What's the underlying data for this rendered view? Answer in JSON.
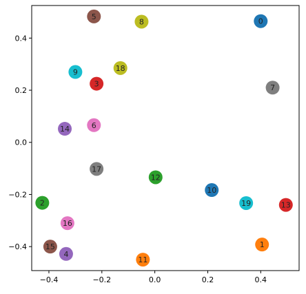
{
  "chart_data": {
    "type": "scatter",
    "xlim": [
      -0.465,
      0.545
    ],
    "ylim": [
      -0.492,
      0.525
    ],
    "grid": false,
    "x_ticks": [
      {
        "value": -0.4,
        "label": "−0.4"
      },
      {
        "value": -0.2,
        "label": "−0.2"
      },
      {
        "value": 0.0,
        "label": "0.0"
      },
      {
        "value": 0.2,
        "label": "0.2"
      },
      {
        "value": 0.4,
        "label": "0.4"
      }
    ],
    "y_ticks": [
      {
        "value": 0.4,
        "label": "0.4"
      },
      {
        "value": 0.2,
        "label": "0.2"
      },
      {
        "value": 0.0,
        "label": "0.0"
      },
      {
        "value": -0.2,
        "label": "−0.2"
      },
      {
        "value": -0.4,
        "label": "−0.4"
      }
    ],
    "points": [
      {
        "label": "0",
        "x": 0.4,
        "y": 0.465,
        "color": "#1f77b4"
      },
      {
        "label": "1",
        "x": 0.405,
        "y": -0.392,
        "color": "#ff7f0e"
      },
      {
        "label": "2",
        "x": -0.425,
        "y": -0.232,
        "color": "#2ca02c"
      },
      {
        "label": "3",
        "x": -0.22,
        "y": 0.225,
        "color": "#d62728"
      },
      {
        "label": "4",
        "x": -0.335,
        "y": -0.428,
        "color": "#9467bd"
      },
      {
        "label": "5",
        "x": -0.23,
        "y": 0.483,
        "color": "#8c564b"
      },
      {
        "label": "6",
        "x": -0.23,
        "y": 0.066,
        "color": "#e377c2"
      },
      {
        "label": "7",
        "x": 0.445,
        "y": 0.21,
        "color": "#7f7f7f"
      },
      {
        "label": "8",
        "x": -0.05,
        "y": 0.463,
        "color": "#bcbd22"
      },
      {
        "label": "9",
        "x": -0.3,
        "y": 0.27,
        "color": "#17becf"
      },
      {
        "label": "10",
        "x": 0.215,
        "y": -0.183,
        "color": "#1f77b4"
      },
      {
        "label": "11",
        "x": -0.045,
        "y": -0.45,
        "color": "#ff7f0e"
      },
      {
        "label": "12",
        "x": 0.003,
        "y": -0.134,
        "color": "#2ca02c"
      },
      {
        "label": "13",
        "x": 0.495,
        "y": -0.24,
        "color": "#d62728"
      },
      {
        "label": "14",
        "x": -0.34,
        "y": 0.052,
        "color": "#9467bd"
      },
      {
        "label": "15",
        "x": -0.395,
        "y": -0.4,
        "color": "#8c564b"
      },
      {
        "label": "16",
        "x": -0.33,
        "y": -0.31,
        "color": "#e377c2"
      },
      {
        "label": "17",
        "x": -0.22,
        "y": -0.102,
        "color": "#7f7f7f"
      },
      {
        "label": "18",
        "x": -0.13,
        "y": 0.285,
        "color": "#bcbd22"
      },
      {
        "label": "19",
        "x": 0.345,
        "y": -0.233,
        "color": "#17becf"
      }
    ]
  }
}
